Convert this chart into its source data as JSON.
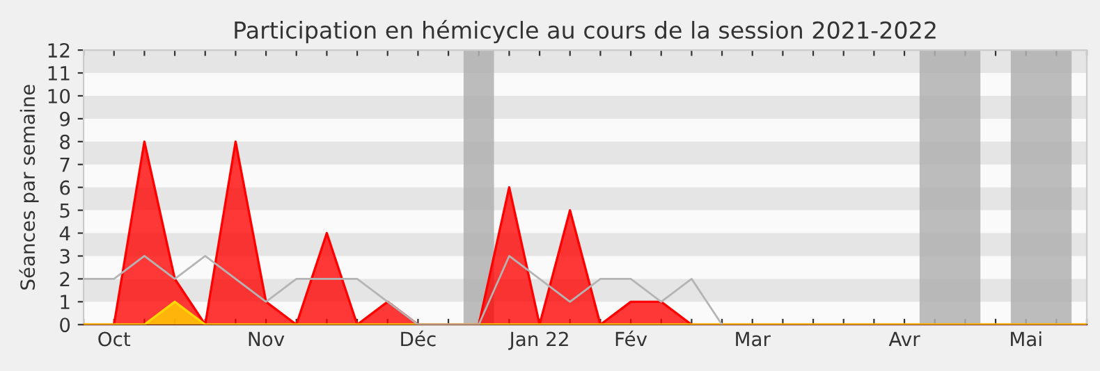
{
  "chart_data": {
    "type": "area",
    "title": "Participation en hémicycle au cours de la session 2021-2022",
    "ylabel": "Séances par semaine",
    "x": [
      "2021-09-28",
      "2021-10-05",
      "2021-10-12",
      "2021-10-19",
      "2021-10-26",
      "2021-11-02",
      "2021-11-09",
      "2021-11-16",
      "2021-11-23",
      "2021-11-30",
      "2021-12-07",
      "2021-12-14",
      "2021-12-21",
      "2021-12-28",
      "2022-01-04",
      "2022-01-11",
      "2022-01-18",
      "2022-01-25",
      "2022-02-01",
      "2022-02-08",
      "2022-02-15",
      "2022-02-22",
      "2022-03-01",
      "2022-03-08",
      "2022-03-15",
      "2022-03-22",
      "2022-03-29",
      "2022-04-05",
      "2022-04-12",
      "2022-04-19",
      "2022-04-26",
      "2022-05-03",
      "2022-05-10",
      "2022-05-17"
    ],
    "series": [
      {
        "type": "line",
        "color": "#b4b4b4",
        "values": [
          2,
          2,
          3,
          2,
          3,
          2,
          1,
          2,
          2,
          2,
          1,
          0,
          0,
          0,
          3,
          2,
          1,
          2,
          2,
          1,
          2,
          0,
          null,
          null,
          null,
          null,
          null,
          null,
          null,
          null,
          null,
          null,
          null,
          null
        ]
      },
      {
        "color": "#ff0000",
        "values": [
          0,
          0,
          8,
          2,
          0,
          8,
          1,
          0,
          4,
          0,
          1,
          0,
          0,
          0,
          6,
          0,
          5,
          0,
          1,
          1,
          0,
          0,
          0,
          0,
          0,
          0,
          0,
          0,
          0,
          0,
          0,
          0,
          0,
          0
        ]
      },
      {
        "color": "#ffd700",
        "values": [
          0,
          0,
          0,
          1,
          0,
          0,
          0,
          0,
          0,
          0,
          0,
          0,
          0,
          0,
          0,
          0,
          0,
          0,
          0,
          0,
          0,
          0,
          0,
          0,
          0,
          0,
          0,
          0,
          0,
          0,
          0,
          0,
          0,
          0
        ]
      }
    ],
    "bands": [
      {
        "axis": "x",
        "from": "2021-12-24T12:00",
        "to": "2021-12-31T12:00",
        "color": "#b0b0b0"
      },
      {
        "axis": "x",
        "from": "2022-04-08T12:00",
        "to": "2022-04-22T12:00",
        "color": "#b0b0b0"
      },
      {
        "axis": "x",
        "from": "2022-04-29T12:00",
        "to": "2022-05-13T12:00",
        "color": "#b0b0b0"
      }
    ],
    "xlim": [
      "2021-09-28",
      "2022-05-17"
    ],
    "xticks": [
      {
        "value": "2021-09-28",
        "label": null
      },
      {
        "value": "2021-10-05",
        "label": "Oct"
      },
      {
        "value": "2021-10-12",
        "label": null
      },
      {
        "value": "2021-10-19",
        "label": null
      },
      {
        "value": "2021-10-26",
        "label": null
      },
      {
        "value": "2021-11-02",
        "label": null
      },
      {
        "value": "2021-11-09",
        "label": "Nov"
      },
      {
        "value": "2021-11-16",
        "label": null
      },
      {
        "value": "2021-11-23",
        "label": null
      },
      {
        "value": "2021-11-30",
        "label": null
      },
      {
        "value": "2021-12-07",
        "label": null
      },
      {
        "value": "2021-12-14",
        "label": "Déc"
      },
      {
        "value": "2021-12-21",
        "label": null
      },
      {
        "value": "2021-12-28",
        "label": null
      },
      {
        "value": "2022-01-04",
        "label": null
      },
      {
        "value": "2022-01-11",
        "label": "Jan 22"
      },
      {
        "value": "2022-01-18",
        "label": null
      },
      {
        "value": "2022-01-25",
        "label": null
      },
      {
        "value": "2022-02-01",
        "label": "Fév"
      },
      {
        "value": "2022-02-08",
        "label": null
      },
      {
        "value": "2022-02-15",
        "label": null
      },
      {
        "value": "2022-02-22",
        "label": null
      },
      {
        "value": "2022-03-01",
        "label": "Mar"
      },
      {
        "value": "2022-03-08",
        "label": null
      },
      {
        "value": "2022-03-15",
        "label": null
      },
      {
        "value": "2022-03-22",
        "label": null
      },
      {
        "value": "2022-03-29",
        "label": null
      },
      {
        "value": "2022-04-05",
        "label": "Avr"
      },
      {
        "value": "2022-04-12",
        "label": null
      },
      {
        "value": "2022-04-19",
        "label": null
      },
      {
        "value": "2022-04-26",
        "label": null
      },
      {
        "value": "2022-05-03",
        "label": "Mai"
      },
      {
        "value": "2022-05-10",
        "label": null
      },
      {
        "value": "2022-05-17",
        "label": null
      }
    ],
    "ylim": [
      0,
      12
    ],
    "yticks": [
      0,
      1,
      2,
      3,
      4,
      5,
      6,
      7,
      8,
      9,
      10,
      11,
      12
    ],
    "legend": false
  }
}
